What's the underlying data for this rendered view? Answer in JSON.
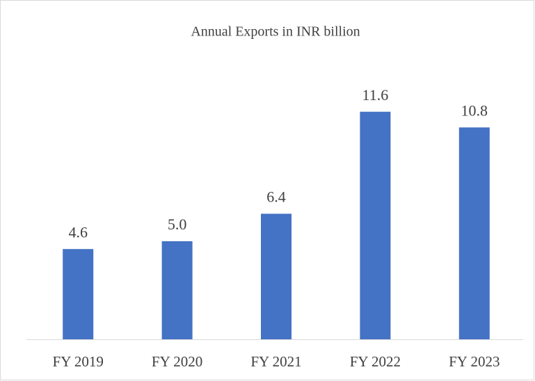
{
  "chart_data": {
    "type": "bar",
    "title": "Annual Exports in INR billion",
    "categories": [
      "FY 2019",
      "FY 2020",
      "FY 2021",
      "FY 2022",
      "FY 2023"
    ],
    "values": [
      4.6,
      5.0,
      6.4,
      11.6,
      10.8
    ],
    "value_labels": [
      "4.6",
      "5.0",
      "6.4",
      "11.6",
      "10.8"
    ],
    "color": "#4472c4",
    "ylim": [
      0,
      14
    ]
  }
}
